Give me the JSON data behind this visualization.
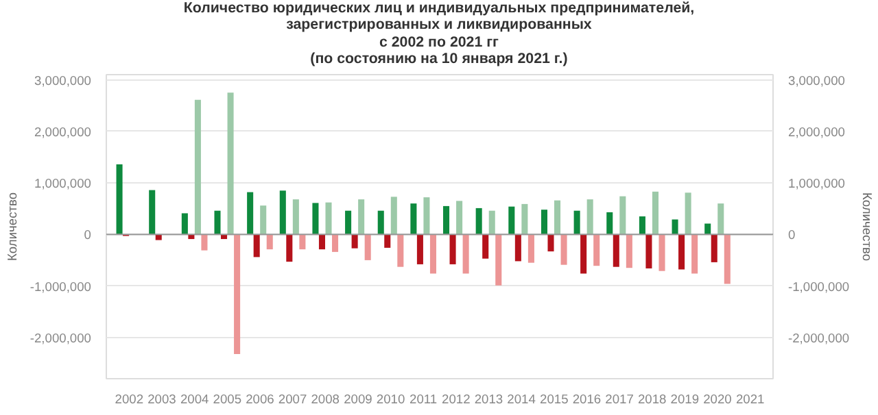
{
  "chart_data": {
    "type": "bar",
    "title": "Количество юридических лиц и индивидуальных предпринимателей,\nзарегистрированных и ликвидированных\nс 2002 по 2021 гг\n(по состоянию на 10 января 2021 г.)",
    "ylabel": "Количество",
    "y2label": "Количество",
    "categories": [
      "2002",
      "2003",
      "2004",
      "2005",
      "2006",
      "2007",
      "2008",
      "2009",
      "2010",
      "2011",
      "2012",
      "2013",
      "2014",
      "2015",
      "2016",
      "2017",
      "2018",
      "2019",
      "2020",
      "2021"
    ],
    "series": [
      {
        "color": "#0e8a3e",
        "values": [
          1360000,
          860000,
          410000,
          460000,
          820000,
          850000,
          610000,
          460000,
          460000,
          600000,
          550000,
          510000,
          540000,
          480000,
          460000,
          430000,
          350000,
          290000,
          210000,
          null
        ]
      },
      {
        "color": "#9cc9a8",
        "values": [
          null,
          null,
          2610000,
          2750000,
          560000,
          680000,
          620000,
          680000,
          730000,
          720000,
          650000,
          460000,
          590000,
          660000,
          680000,
          740000,
          830000,
          810000,
          600000,
          null
        ]
      },
      {
        "color": "#b5121b",
        "values": [
          -30000,
          -110000,
          -90000,
          -90000,
          -440000,
          -530000,
          -290000,
          -270000,
          -260000,
          -580000,
          -580000,
          -470000,
          -520000,
          -330000,
          -760000,
          -630000,
          -660000,
          -680000,
          -540000,
          null
        ]
      },
      {
        "color": "#ec9595",
        "values": [
          null,
          null,
          -310000,
          -2320000,
          -290000,
          -290000,
          -340000,
          -500000,
          -630000,
          -760000,
          -760000,
          -990000,
          -550000,
          -590000,
          -610000,
          -650000,
          -710000,
          -760000,
          -960000,
          null
        ]
      }
    ],
    "grid": "y",
    "ylim": [
      -2800000,
      3100000
    ],
    "yticks": [
      {
        "value": -2000000,
        "label": "-2,000,000"
      },
      {
        "value": -1000000,
        "label": "-1,000,000"
      },
      {
        "value": 0,
        "label": "0"
      },
      {
        "value": 1000000,
        "label": "1,000,000"
      },
      {
        "value": 2000000,
        "label": "2,000,000"
      },
      {
        "value": 3000000,
        "label": "3,000,000"
      }
    ],
    "y2lim": [
      -2800000,
      3100000
    ],
    "y2ticks": [
      {
        "value": -2000000,
        "label": "-2,000,000"
      },
      {
        "value": -1000000,
        "label": "-1,000,000"
      },
      {
        "value": 0,
        "label": "0"
      },
      {
        "value": 1000000,
        "label": "1,000,000"
      },
      {
        "value": 2000000,
        "label": "2,000,000"
      },
      {
        "value": 3000000,
        "label": "3,000,000"
      }
    ]
  }
}
